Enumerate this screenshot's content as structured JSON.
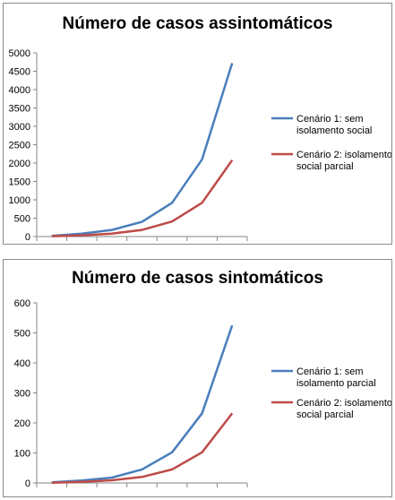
{
  "chart_data": [
    {
      "type": "line",
      "title": "Número de casos assintomáticos",
      "xlabel": "",
      "ylabel": "",
      "ylim": [
        0,
        5000
      ],
      "yticks": [
        "0",
        "500",
        "1000",
        "1500",
        "2000",
        "2500",
        "3000",
        "3500",
        "4000",
        "4500",
        "5000"
      ],
      "x": [
        1,
        2,
        3,
        4,
        5,
        6,
        7
      ],
      "legend_position": "right",
      "grid": false,
      "series": [
        {
          "name": "Cenário 1: sem isolamento social",
          "name_lines": [
            "Cenário 1: sem",
            "isolamento social"
          ],
          "color": "#4a7ebb",
          "values": [
            20,
            80,
            180,
            400,
            920,
            2100,
            4720
          ]
        },
        {
          "name": "Cenário 2: isolamento social parcial",
          "name_lines": [
            "Cenário 2: isolamento",
            "social parcial"
          ],
          "color": "#be4b48",
          "values": [
            10,
            35,
            80,
            180,
            410,
            920,
            2080
          ]
        }
      ]
    },
    {
      "type": "line",
      "title": "Número de casos sintomáticos",
      "xlabel": "",
      "ylabel": "",
      "ylim": [
        0,
        600
      ],
      "yticks": [
        "0",
        "100",
        "200",
        "300",
        "400",
        "500",
        "600"
      ],
      "x": [
        1,
        2,
        3,
        4,
        5,
        6,
        7
      ],
      "legend_position": "right",
      "grid": false,
      "series": [
        {
          "name": "Cenário 1: sem isolamento parcial",
          "name_lines": [
            "Cenário 1: sem",
            "isolamento parcial"
          ],
          "color": "#4a7ebb",
          "values": [
            2,
            8,
            18,
            45,
            102,
            232,
            525
          ]
        },
        {
          "name": "Cenário 2: isolamento social parcial",
          "name_lines": [
            "Cenário 2: isolamento",
            "social parcial"
          ],
          "color": "#be4b48",
          "values": [
            1,
            4,
            9,
            20,
            45,
            102,
            232
          ]
        }
      ]
    }
  ]
}
